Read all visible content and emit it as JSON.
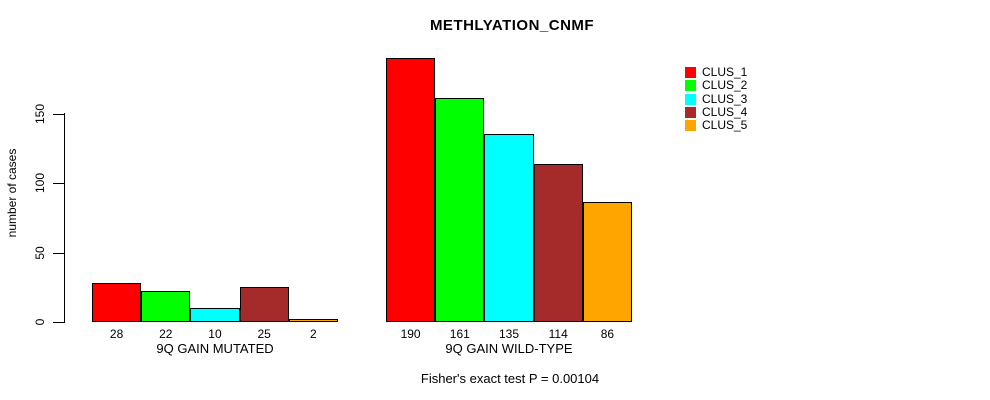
{
  "chart_data": {
    "type": "bar",
    "title": "METHLYATION_CNMF",
    "ylabel": "number of cases",
    "xlabel": "",
    "yticks": [
      0,
      50,
      100,
      150
    ],
    "axis_range": [
      0,
      150
    ],
    "grid": false,
    "groups": [
      "9Q GAIN MUTATED",
      "9Q GAIN WILD-TYPE"
    ],
    "series": [
      {
        "name": "CLUS_1",
        "color": "#FF0000",
        "values": [
          28,
          190
        ]
      },
      {
        "name": "CLUS_2",
        "color": "#00FF00",
        "values": [
          22,
          161
        ]
      },
      {
        "name": "CLUS_3",
        "color": "#00FFFF",
        "values": [
          10,
          135
        ]
      },
      {
        "name": "CLUS_4",
        "color": "#A52A2A",
        "values": [
          25,
          114
        ]
      },
      {
        "name": "CLUS_5",
        "color": "#FFA500",
        "values": [
          2,
          86
        ]
      }
    ],
    "bar_value_labels": true,
    "legend_position": "right",
    "legend_entries": [
      "CLUS_1",
      "CLUS_2",
      "CLUS_3",
      "CLUS_4",
      "CLUS_5"
    ],
    "footnote": "Fisher's exact test P = 0.00104"
  }
}
